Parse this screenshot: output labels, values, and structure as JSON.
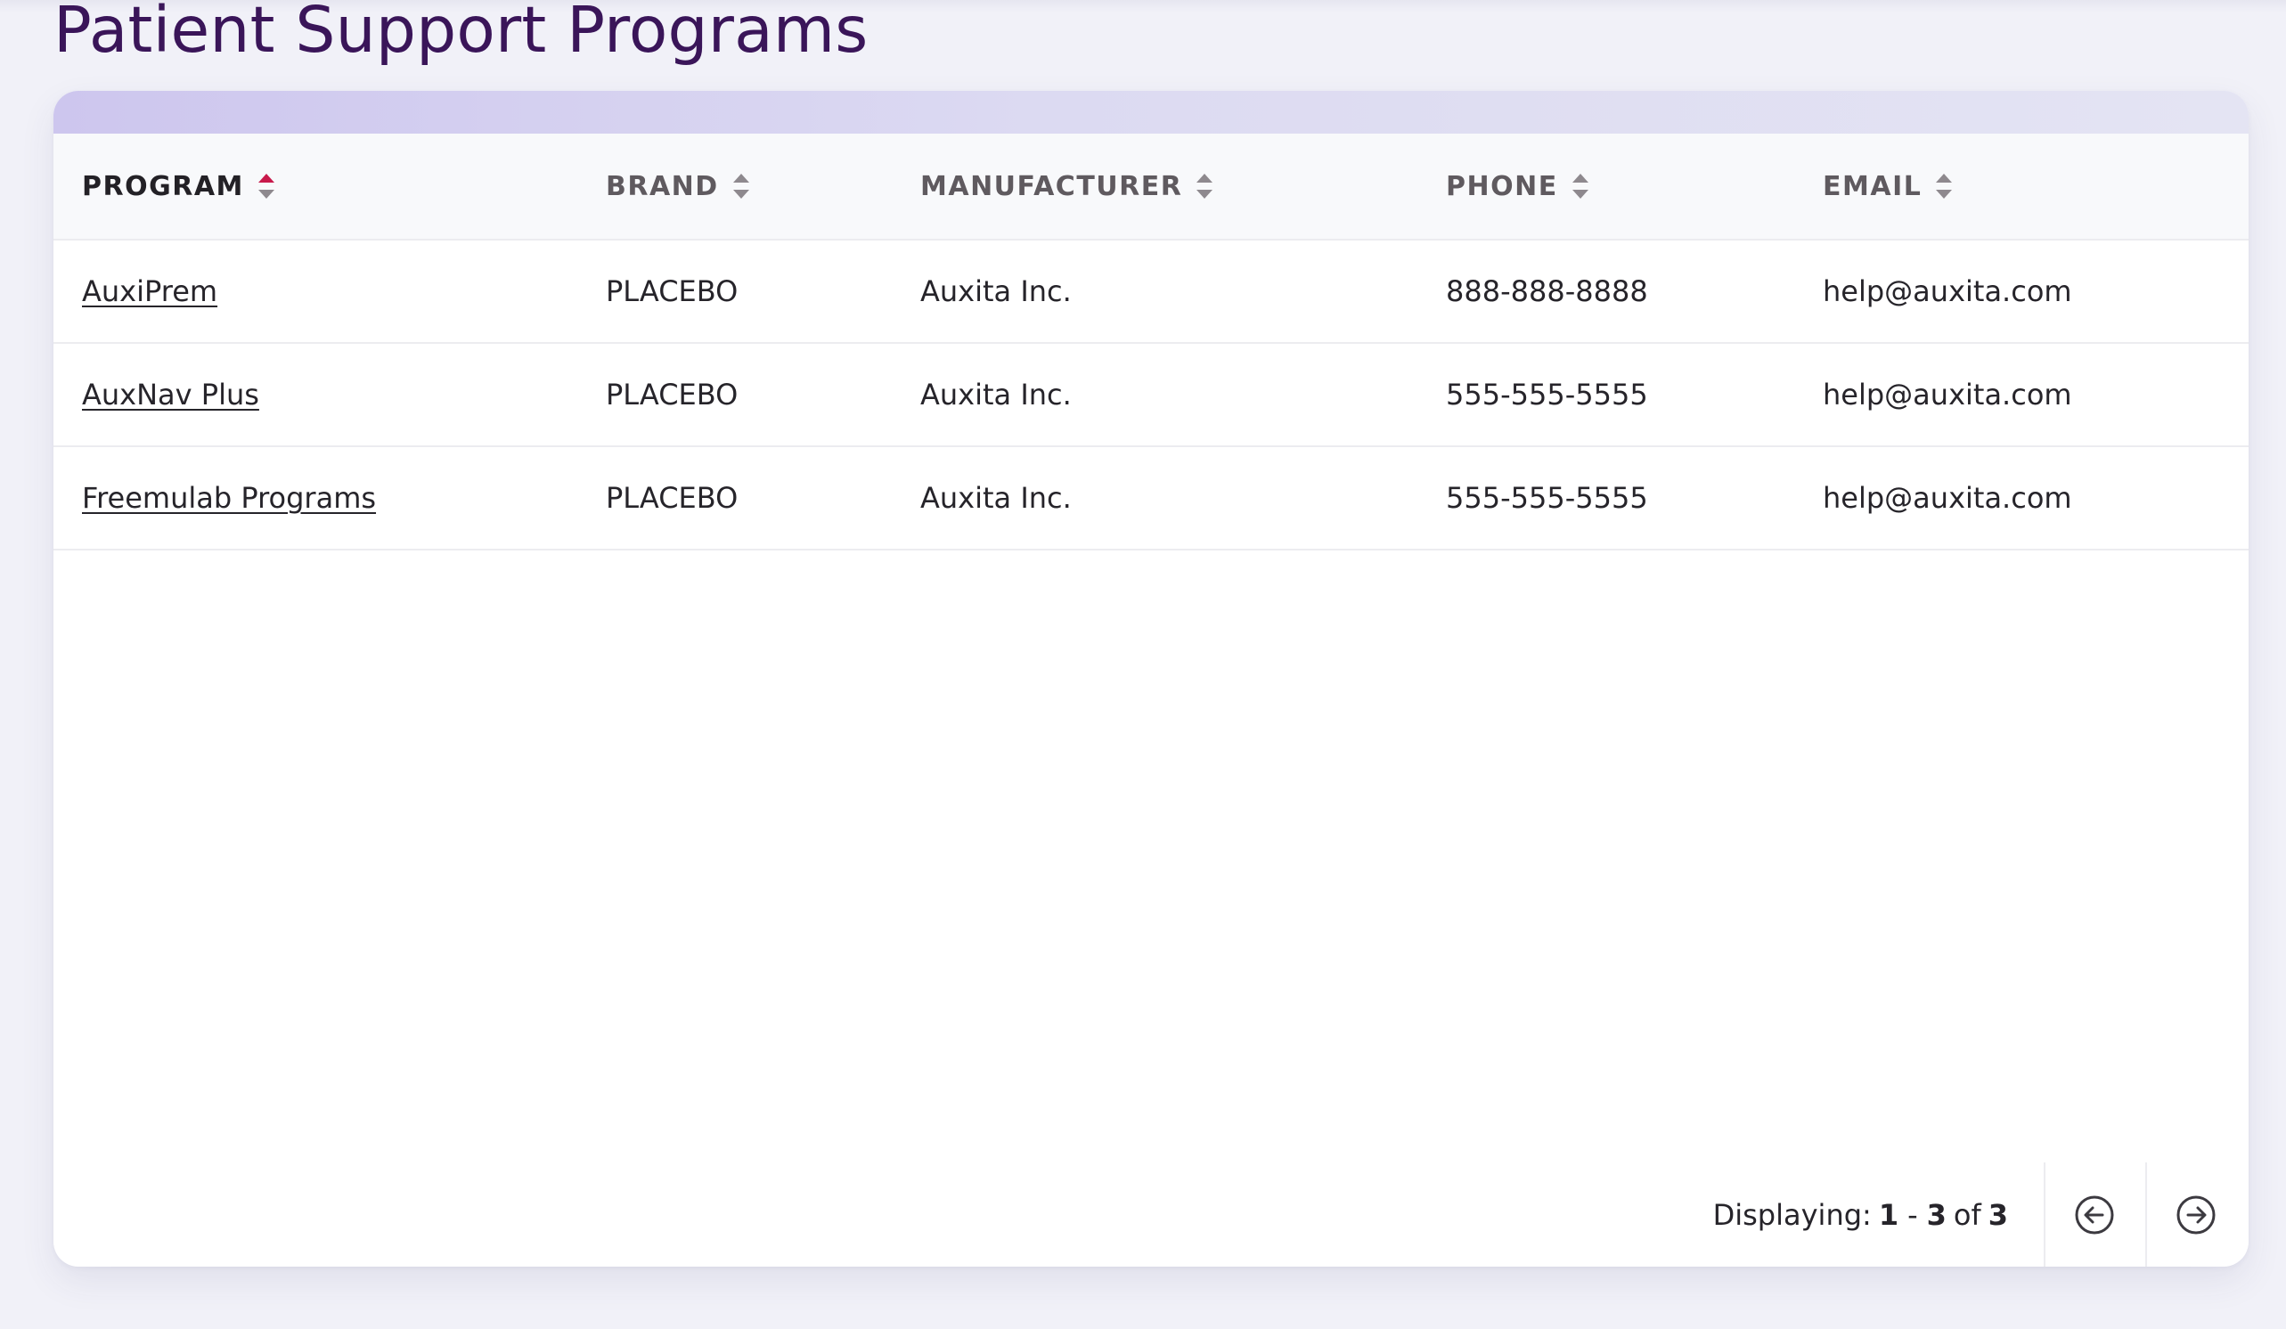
{
  "page": {
    "title": "Patient Support Programs"
  },
  "table": {
    "columns": [
      {
        "label": "PROGRAM",
        "sort": "ascending"
      },
      {
        "label": "BRAND",
        "sort": "none"
      },
      {
        "label": "MANUFACTURER",
        "sort": "none"
      },
      {
        "label": "PHONE",
        "sort": "none"
      },
      {
        "label": "EMAIL",
        "sort": "none"
      }
    ],
    "rows": [
      {
        "program": "AuxiPrem",
        "brand": "PLACEBO",
        "manufacturer": "Auxita Inc.",
        "phone": "888-888-8888",
        "email": "help@auxita.com"
      },
      {
        "program": "AuxNav Plus",
        "brand": "PLACEBO",
        "manufacturer": "Auxita Inc.",
        "phone": "555-555-5555",
        "email": "help@auxita.com"
      },
      {
        "program": "Freemulab Programs",
        "brand": "PLACEBO",
        "manufacturer": "Auxita Inc.",
        "phone": "555-555-5555",
        "email": "help@auxita.com"
      }
    ]
  },
  "pagination": {
    "label": "Displaying:",
    "start": "1",
    "separator": "-",
    "end": "3",
    "of_label": "of",
    "total": "3",
    "prev_icon": "arrow-left-circle-icon",
    "next_icon": "arrow-right-circle-icon"
  },
  "colors": {
    "title": "#3a1559",
    "sort_active": "#c8194b",
    "sort_inactive": "#8e898e",
    "band_start": "#cdc6ee",
    "band_end": "#e4e4f3"
  }
}
